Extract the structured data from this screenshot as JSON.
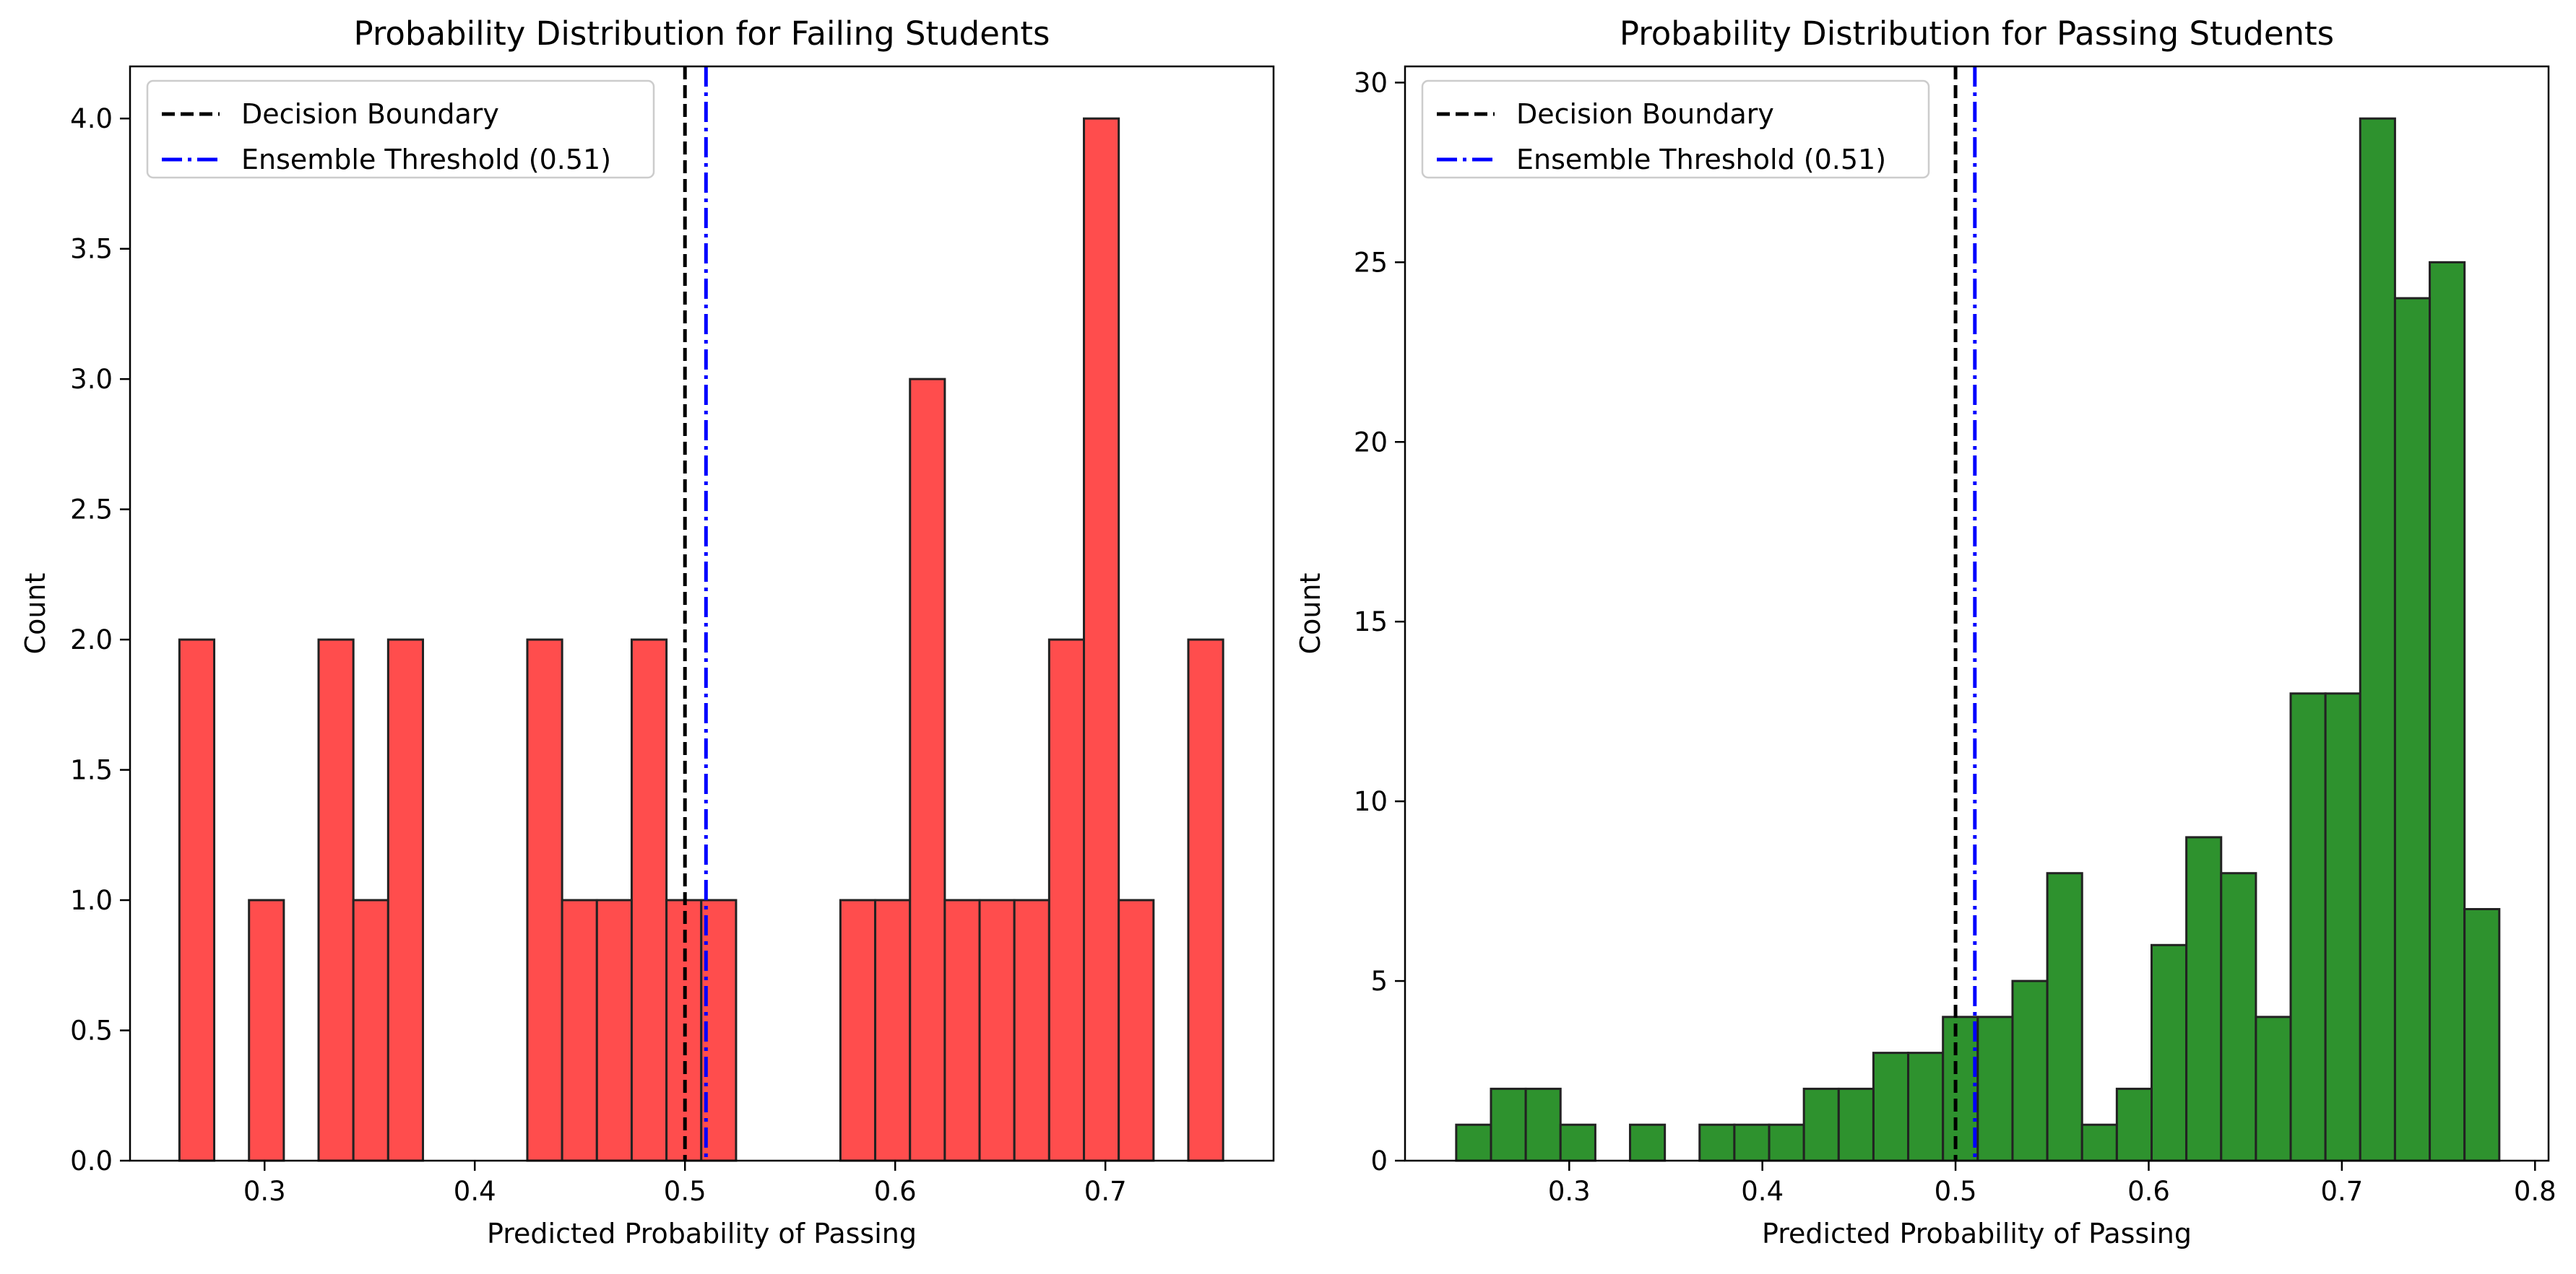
{
  "chart_data": [
    {
      "type": "bar",
      "title": "Probability Distribution for Failing Students",
      "xlabel": "Predicted Probability of Passing",
      "ylabel": "Count",
      "xlim": [
        0.236,
        0.78
      ],
      "ylim": [
        0,
        4.2
      ],
      "xticks": [
        0.3,
        0.4,
        0.5,
        0.6,
        0.7
      ],
      "xtick_labels": [
        "0.3",
        "0.4",
        "0.5",
        "0.6",
        "0.7"
      ],
      "yticks": [
        0.0,
        0.5,
        1.0,
        1.5,
        2.0,
        2.5,
        3.0,
        3.5,
        4.0
      ],
      "ytick_labels": [
        "0.0",
        "0.5",
        "1.0",
        "1.5",
        "2.0",
        "2.5",
        "3.0",
        "3.5",
        "4.0"
      ],
      "bin_start": 0.2595,
      "bin_width": 0.01655,
      "counts": [
        2,
        0,
        1,
        0,
        2,
        1,
        2,
        0,
        0,
        0,
        2,
        1,
        1,
        2,
        1,
        1,
        0,
        0,
        0,
        1,
        1,
        3,
        1,
        1,
        1,
        2,
        4,
        1,
        0,
        2
      ],
      "bar_color": "#ff4d4d",
      "edge_color": "#222222",
      "legend_position": "upper-left",
      "reference_lines": [
        {
          "label": "Decision Boundary",
          "x": 0.5,
          "style": "dashed",
          "color": "#000000"
        },
        {
          "label": "Ensemble Threshold (0.51)",
          "x": 0.51,
          "style": "dashdot",
          "color": "#0000ff"
        }
      ]
    },
    {
      "type": "bar",
      "title": "Probability Distribution for Passing Students",
      "xlabel": "Predicted Probability of Passing",
      "ylabel": "Count",
      "xlim": [
        0.215,
        0.807
      ],
      "ylim": [
        0,
        30.45
      ],
      "xticks": [
        0.3,
        0.4,
        0.5,
        0.6,
        0.7,
        0.8
      ],
      "xtick_labels": [
        "0.3",
        "0.4",
        "0.5",
        "0.6",
        "0.7",
        "0.8"
      ],
      "yticks": [
        0,
        5,
        10,
        15,
        20,
        25,
        30
      ],
      "ytick_labels": [
        "0",
        "5",
        "10",
        "15",
        "20",
        "25",
        "30"
      ],
      "bin_start": 0.2415,
      "bin_width": 0.018,
      "counts": [
        1,
        2,
        2,
        1,
        0,
        1,
        0,
        1,
        1,
        1,
        2,
        2,
        3,
        3,
        4,
        4,
        5,
        8,
        1,
        2,
        6,
        9,
        8,
        4,
        13,
        13,
        29,
        24,
        25,
        7
      ],
      "bar_color": "#2e922e",
      "edge_color": "#222222",
      "legend_position": "upper-left",
      "reference_lines": [
        {
          "label": "Decision Boundary",
          "x": 0.5,
          "style": "dashed",
          "color": "#000000"
        },
        {
          "label": "Ensemble Threshold (0.51)",
          "x": 0.51,
          "style": "dashdot",
          "color": "#0000ff"
        }
      ]
    }
  ]
}
